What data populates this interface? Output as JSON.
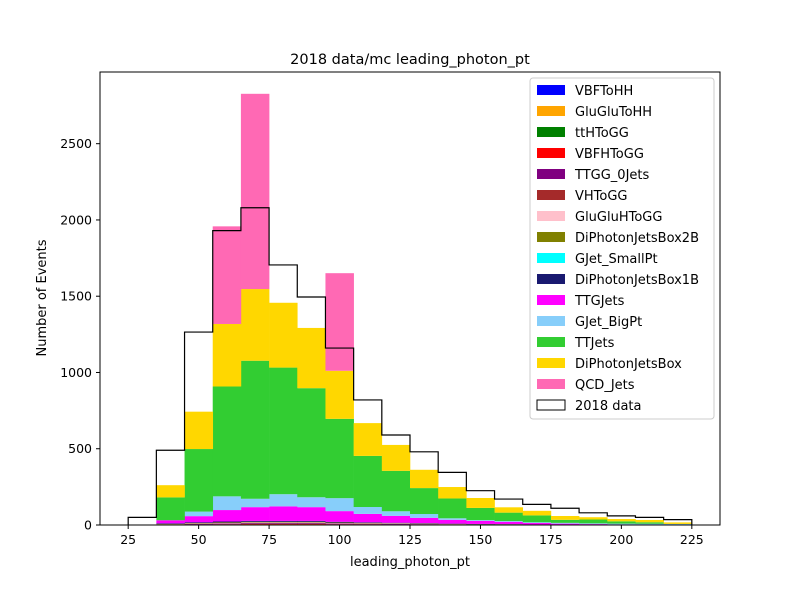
{
  "chart_data": {
    "type": "bar",
    "title": "2018 data/mc leading_photon_pt",
    "xlabel": "leading_photon_pt",
    "ylabel": "Number of Events",
    "xlim": [
      15,
      235
    ],
    "ylim": [
      0,
      2970
    ],
    "xticks": [
      25,
      50,
      75,
      100,
      125,
      150,
      175,
      200,
      225
    ],
    "yticks": [
      0,
      500,
      1000,
      1500,
      2000,
      2500
    ],
    "bin_edges": [
      25,
      35,
      45,
      55,
      65,
      75,
      85,
      95,
      105,
      115,
      125,
      135,
      145,
      155,
      165,
      175,
      185,
      195,
      205,
      215,
      225
    ],
    "legend_position": "top-right",
    "stack_order": [
      "VBFToHH",
      "GluGluToHH",
      "ttHToGG",
      "VBFHToGG",
      "TTGG_0Jets",
      "VHToGG",
      "GluGluHToGG",
      "DiPhotonJetsBox2B",
      "GJet_SmallPt",
      "DiPhotonJetsBox1B",
      "TTGJets",
      "GJet_BigPt",
      "TTJets",
      "DiPhotonJetsBox",
      "QCD_Jets"
    ],
    "series": [
      {
        "name": "VBFToHH",
        "color": "#0000ff",
        "values": [
          0,
          0,
          0,
          0,
          0,
          0,
          0,
          0,
          0,
          0,
          0,
          0,
          0,
          0,
          0,
          0,
          0,
          0,
          0,
          0
        ]
      },
      {
        "name": "GluGluToHH",
        "color": "#ffa500",
        "values": [
          0,
          0,
          0,
          0,
          0,
          0,
          0,
          0,
          0,
          0,
          0,
          0,
          0,
          0,
          0,
          0,
          0,
          0,
          0,
          0
        ]
      },
      {
        "name": "ttHToGG",
        "color": "#008000",
        "values": [
          0,
          1,
          2,
          3,
          4,
          4,
          4,
          3,
          3,
          2,
          2,
          1,
          1,
          1,
          1,
          0,
          0,
          0,
          0,
          0
        ]
      },
      {
        "name": "VBFHToGG",
        "color": "#ff0000",
        "values": [
          0,
          1,
          2,
          2,
          3,
          3,
          3,
          2,
          2,
          2,
          1,
          1,
          1,
          1,
          0,
          0,
          0,
          0,
          0,
          0
        ]
      },
      {
        "name": "TTGG_0Jets",
        "color": "#800080",
        "values": [
          0,
          1,
          3,
          4,
          5,
          5,
          5,
          4,
          3,
          3,
          2,
          2,
          1,
          1,
          1,
          0,
          0,
          0,
          0,
          0
        ]
      },
      {
        "name": "VHToGG",
        "color": "#a52a2a",
        "values": [
          0,
          1,
          1,
          2,
          2,
          2,
          2,
          2,
          1,
          1,
          1,
          1,
          0,
          0,
          0,
          0,
          0,
          0,
          0,
          0
        ]
      },
      {
        "name": "GluGluHToGG",
        "color": "#ffc0cb",
        "values": [
          0,
          1,
          2,
          2,
          3,
          3,
          3,
          2,
          2,
          2,
          1,
          1,
          1,
          1,
          0,
          0,
          0,
          0,
          0,
          0
        ]
      },
      {
        "name": "DiPhotonJetsBox2B",
        "color": "#808000",
        "values": [
          0,
          2,
          3,
          4,
          4,
          4,
          4,
          3,
          3,
          2,
          2,
          1,
          1,
          1,
          0,
          0,
          0,
          0,
          0,
          0
        ]
      },
      {
        "name": "GJet_SmallPt",
        "color": "#00ffff",
        "values": [
          0,
          0,
          0,
          0,
          0,
          0,
          0,
          0,
          0,
          0,
          0,
          0,
          0,
          0,
          0,
          0,
          0,
          0,
          0,
          0
        ]
      },
      {
        "name": "DiPhotonJetsBox1B",
        "color": "#191970",
        "values": [
          0,
          4,
          5,
          6,
          6,
          6,
          6,
          5,
          4,
          3,
          3,
          2,
          2,
          1,
          1,
          1,
          0,
          0,
          0,
          0
        ]
      },
      {
        "name": "TTGJets",
        "color": "#ff00ff",
        "values": [
          0,
          20,
          40,
          75,
          90,
          95,
          90,
          70,
          55,
          45,
          35,
          25,
          20,
          15,
          10,
          8,
          6,
          4,
          3,
          2
        ]
      },
      {
        "name": "GJet_BigPt",
        "color": "#87cefa",
        "values": [
          0,
          0,
          30,
          90,
          55,
          80,
          65,
          85,
          45,
          30,
          25,
          10,
          5,
          5,
          5,
          5,
          5,
          5,
          5,
          5
        ]
      },
      {
        "name": "TTJets",
        "color": "#32cd32",
        "values": [
          0,
          150,
          410,
          720,
          905,
          830,
          715,
          520,
          335,
          265,
          170,
          130,
          80,
          55,
          45,
          20,
          25,
          15,
          10,
          0
        ]
      },
      {
        "name": "DiPhotonJetsBox",
        "color": "#ffd700",
        "values": [
          0,
          80,
          245,
          410,
          470,
          425,
          395,
          315,
          215,
          170,
          120,
          75,
          65,
          35,
          30,
          25,
          15,
          15,
          15,
          10
        ]
      },
      {
        "name": "QCD_Jets",
        "color": "#ff69b4",
        "values": [
          0,
          0,
          0,
          640,
          1280,
          0,
          0,
          640,
          0,
          0,
          0,
          0,
          0,
          0,
          0,
          0,
          0,
          0,
          0,
          0
        ]
      }
    ],
    "data_series": {
      "name": "2018 data",
      "color": "#000000",
      "values": [
        50,
        490,
        1265,
        1930,
        2080,
        1705,
        1495,
        1160,
        820,
        590,
        480,
        345,
        225,
        170,
        135,
        110,
        80,
        60,
        50,
        35
      ]
    }
  }
}
